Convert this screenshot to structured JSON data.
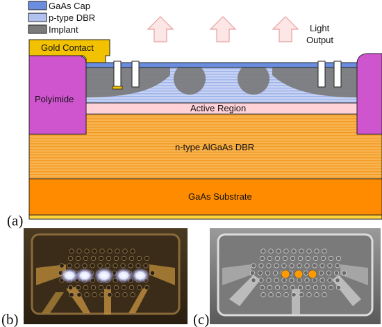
{
  "legend": [
    {
      "label": "GaAs Cap",
      "color": "#6b8de0"
    },
    {
      "label": "p-type DBR",
      "color": "#b9c8f0"
    },
    {
      "label": "Implant",
      "color": "#7a7a7a"
    }
  ],
  "labels": {
    "gold_contact": "Gold Contact",
    "polyimide": "Polyimide",
    "light_output_line1": "Light",
    "light_output_line2": "Output",
    "active_region": "Active Region",
    "n_dbr": "n-type AlGaAs DBR",
    "substrate": "GaAs Substrate"
  },
  "panels": {
    "a": "(a)",
    "b": "(b)",
    "c": "(c)"
  },
  "colors": {
    "gaas_cap": "#6b8de0",
    "p_dbr": "#b9c8f0",
    "implant": "#7a7a7a",
    "gold": "#f2c200",
    "polyimide": "#cf55cf",
    "active": "#ffd2d8",
    "n_dbr": "#f7a63a",
    "substrate": "#ff8c00",
    "arrow_fill": "#fde6e6",
    "arrow_stroke": "#e8a0a0",
    "emitter": "#ff9a00"
  }
}
